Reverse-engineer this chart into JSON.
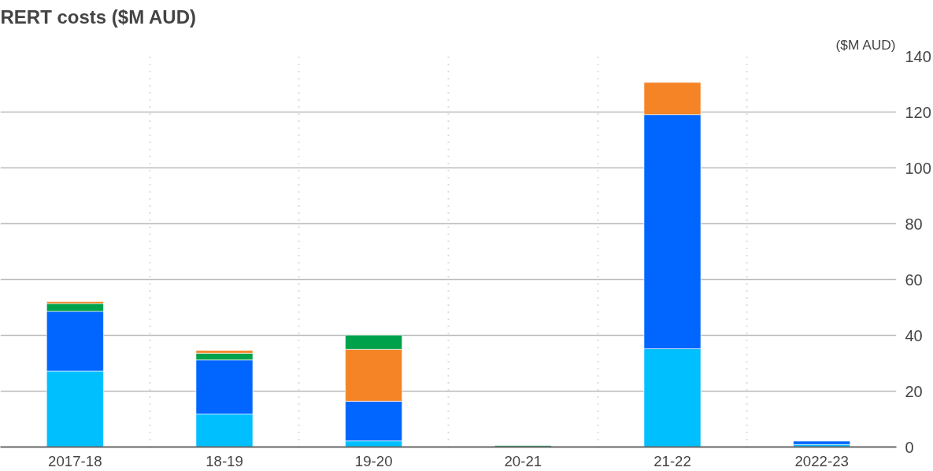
{
  "chart_data": {
    "type": "bar",
    "title": "RERT costs ($M AUD)",
    "ylabel": "($M AUD)",
    "categories": [
      "2017-18",
      "18-19",
      "19-20",
      "20-21",
      "21-22",
      "2022-23"
    ],
    "stacked": true,
    "series": [
      {
        "color": "#00bfff",
        "values": [
          27.2,
          11.8,
          2.2,
          null,
          35.2,
          0.9
        ]
      },
      {
        "color": "#0066ff",
        "values": [
          21.4,
          19.4,
          14.2,
          null,
          83.9,
          1.2
        ]
      },
      {
        "color": "#f58426",
        "values": [
          null,
          null,
          18.6,
          null,
          null,
          null
        ]
      },
      {
        "color": "#00a14b",
        "values": [
          2.8,
          2.4,
          5.1,
          0.5,
          null,
          null
        ]
      },
      {
        "color": "#f58426",
        "values": [
          0.7,
          1.0,
          null,
          null,
          11.5,
          null
        ]
      }
    ],
    "ylim": [
      0,
      140
    ],
    "yticks": [
      0,
      20,
      40,
      60,
      80,
      100,
      120,
      140
    ],
    "grid": true
  }
}
